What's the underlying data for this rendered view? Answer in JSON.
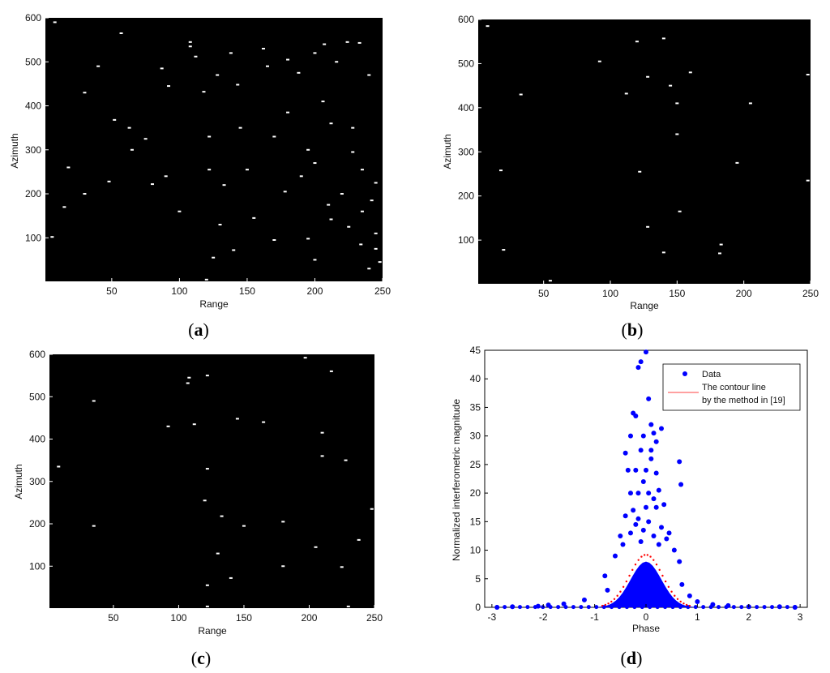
{
  "chart_data": [
    {
      "panel": "a",
      "type": "scatter",
      "title": "",
      "xlabel": "Range",
      "ylabel": "Azimuth",
      "xlim": [
        1,
        250
      ],
      "ylim": [
        1,
        600
      ],
      "xticks": [
        50,
        100,
        150,
        200,
        250
      ],
      "yticks": [
        100,
        200,
        300,
        400,
        500,
        600
      ],
      "background": "#000000",
      "point_color": "#ffffff",
      "points": [
        [
          108,
          545
        ],
        [
          108,
          535
        ],
        [
          112,
          512
        ],
        [
          40,
          490
        ],
        [
          87,
          485
        ],
        [
          138,
          520
        ],
        [
          118,
          432
        ],
        [
          128,
          470
        ],
        [
          52,
          368
        ],
        [
          63,
          350
        ],
        [
          75,
          325
        ],
        [
          65,
          300
        ],
        [
          122,
          330
        ],
        [
          170,
          330
        ],
        [
          212,
          360
        ],
        [
          228,
          350
        ],
        [
          228,
          295
        ],
        [
          122,
          255
        ],
        [
          133,
          220
        ],
        [
          80,
          222
        ],
        [
          178,
          205
        ],
        [
          18,
          260
        ],
        [
          200,
          270
        ],
        [
          212,
          142
        ],
        [
          130,
          130
        ],
        [
          140,
          72
        ],
        [
          125,
          55
        ],
        [
          155,
          145
        ],
        [
          195,
          98
        ],
        [
          235,
          160
        ],
        [
          242,
          185
        ],
        [
          245,
          110
        ],
        [
          245,
          75
        ],
        [
          248,
          45
        ],
        [
          6,
          102
        ],
        [
          92,
          445
        ],
        [
          143,
          448
        ],
        [
          165,
          490
        ],
        [
          180,
          505
        ],
        [
          200,
          520
        ],
        [
          207,
          540
        ],
        [
          224,
          545
        ],
        [
          233,
          543
        ],
        [
          240,
          470
        ],
        [
          206,
          410
        ],
        [
          180,
          385
        ],
        [
          57,
          565
        ],
        [
          8,
          590
        ],
        [
          216,
          500
        ],
        [
          145,
          350
        ],
        [
          90,
          240
        ],
        [
          30,
          200
        ],
        [
          100,
          160
        ],
        [
          150,
          255
        ],
        [
          190,
          240
        ],
        [
          220,
          200
        ],
        [
          235,
          255
        ],
        [
          120,
          5
        ],
        [
          200,
          50
        ],
        [
          240,
          30
        ],
        [
          170,
          95
        ],
        [
          225,
          125
        ],
        [
          48,
          228
        ],
        [
          15,
          170
        ],
        [
          30,
          430
        ],
        [
          162,
          530
        ],
        [
          188,
          475
        ],
        [
          195,
          300
        ],
        [
          234,
          85
        ],
        [
          210,
          175
        ],
        [
          245,
          225
        ]
      ]
    },
    {
      "panel": "b",
      "type": "scatter",
      "title": "",
      "xlabel": "Range",
      "ylabel": "Azimuth",
      "xlim": [
        1,
        250
      ],
      "ylim": [
        1,
        600
      ],
      "xticks": [
        50,
        100,
        150,
        200,
        250
      ],
      "yticks": [
        100,
        200,
        300,
        400,
        500,
        600
      ],
      "background": "#000000",
      "point_color": "#ffffff",
      "points": [
        [
          8,
          585
        ],
        [
          120,
          550
        ],
        [
          140,
          557
        ],
        [
          92,
          505
        ],
        [
          160,
          480
        ],
        [
          128,
          470
        ],
        [
          145,
          450
        ],
        [
          112,
          432
        ],
        [
          33,
          430
        ],
        [
          150,
          410
        ],
        [
          205,
          410
        ],
        [
          150,
          340
        ],
        [
          195,
          275
        ],
        [
          18,
          258
        ],
        [
          122,
          255
        ],
        [
          152,
          165
        ],
        [
          128,
          130
        ],
        [
          140,
          72
        ],
        [
          183,
          90
        ],
        [
          182,
          70
        ],
        [
          20,
          78
        ],
        [
          55,
          8
        ],
        [
          248,
          235
        ],
        [
          248,
          475
        ]
      ]
    },
    {
      "panel": "c",
      "type": "scatter",
      "title": "",
      "xlabel": "Range",
      "ylabel": "Azimuth",
      "xlim": [
        1,
        250
      ],
      "ylim": [
        1,
        600
      ],
      "xticks": [
        50,
        100,
        150,
        200,
        250
      ],
      "yticks": [
        100,
        200,
        300,
        400,
        500,
        600
      ],
      "background": "#000000",
      "point_color": "#ffffff",
      "points": [
        [
          108,
          545
        ],
        [
          107,
          532
        ],
        [
          122,
          550
        ],
        [
          197,
          592
        ],
        [
          217,
          560
        ],
        [
          35,
          490
        ],
        [
          112,
          435
        ],
        [
          92,
          430
        ],
        [
          145,
          448
        ],
        [
          165,
          440
        ],
        [
          210,
          415
        ],
        [
          8,
          335
        ],
        [
          122,
          330
        ],
        [
          210,
          360
        ],
        [
          228,
          350
        ],
        [
          120,
          255
        ],
        [
          133,
          218
        ],
        [
          180,
          205
        ],
        [
          150,
          195
        ],
        [
          35,
          195
        ],
        [
          238,
          162
        ],
        [
          205,
          145
        ],
        [
          130,
          130
        ],
        [
          140,
          72
        ],
        [
          122,
          55
        ],
        [
          180,
          100
        ],
        [
          225,
          98
        ],
        [
          248,
          235
        ],
        [
          122,
          5
        ],
        [
          230,
          5
        ]
      ]
    },
    {
      "panel": "d",
      "type": "scatter",
      "title": "",
      "xlabel": "Phase",
      "ylabel": "Normalized interferometric magnitude",
      "xlim": [
        -3.14,
        3.14
      ],
      "ylim": [
        0,
        45
      ],
      "xticks": [
        -3,
        -2,
        -1,
        0,
        1,
        2,
        3
      ],
      "yticks": [
        0,
        5,
        10,
        15,
        20,
        25,
        30,
        35,
        40,
        45
      ],
      "legend_position": "top-right",
      "series": [
        {
          "name": "Data",
          "color": "#0000ff",
          "marker": "dot",
          "density_model": "gaussian-core",
          "core_sigma": 0.3,
          "core_peak": 8,
          "outliers": [
            [
              0.0,
              44.7
            ],
            [
              -0.1,
              43
            ],
            [
              -0.15,
              42
            ],
            [
              0.05,
              36.5
            ],
            [
              0.1,
              32
            ],
            [
              -0.05,
              30
            ],
            [
              0.15,
              30.5
            ],
            [
              0.3,
              31.3
            ],
            [
              0.2,
              29
            ],
            [
              -0.3,
              30
            ],
            [
              -0.2,
              33.5
            ],
            [
              -0.25,
              34
            ],
            [
              -0.4,
              27
            ],
            [
              -0.1,
              27.5
            ],
            [
              0.1,
              27.5
            ],
            [
              0.65,
              25.5
            ],
            [
              0.68,
              21.5
            ],
            [
              -0.35,
              24
            ],
            [
              -0.2,
              24
            ],
            [
              0.0,
              24
            ],
            [
              0.2,
              23.5
            ],
            [
              0.1,
              26
            ],
            [
              0.25,
              20.5
            ],
            [
              -0.3,
              20
            ],
            [
              -0.15,
              20
            ],
            [
              0.05,
              20
            ],
            [
              -0.25,
              17
            ],
            [
              0.0,
              17.5
            ],
            [
              0.2,
              17.5
            ],
            [
              -0.4,
              16
            ],
            [
              -0.15,
              15.5
            ],
            [
              0.05,
              15
            ],
            [
              0.3,
              14
            ],
            [
              -0.3,
              13
            ],
            [
              -0.05,
              13.5
            ],
            [
              0.15,
              12.5
            ],
            [
              0.4,
              12
            ],
            [
              -0.45,
              11
            ],
            [
              0.25,
              11
            ],
            [
              -0.1,
              11.5
            ],
            [
              0.55,
              10
            ],
            [
              -0.6,
              9
            ],
            [
              -0.8,
              5.5
            ],
            [
              0.65,
              8
            ],
            [
              0.7,
              4
            ],
            [
              -0.75,
              3
            ],
            [
              0.85,
              2
            ],
            [
              -1.2,
              1.3
            ],
            [
              1.0,
              1
            ],
            [
              -1.6,
              0.6
            ],
            [
              1.6,
              0.3
            ],
            [
              -2.1,
              0.2
            ],
            [
              2.0,
              0.1
            ],
            [
              -2.6,
              0.1
            ],
            [
              2.6,
              0.1
            ],
            [
              -2.9,
              0.0
            ],
            [
              2.9,
              0.0
            ],
            [
              -1.9,
              0.4
            ],
            [
              1.3,
              0.5
            ],
            [
              0.35,
              18
            ],
            [
              -0.05,
              22
            ],
            [
              0.15,
              19
            ],
            [
              -0.2,
              14.5
            ],
            [
              0.45,
              13
            ],
            [
              -0.5,
              12.5
            ]
          ]
        },
        {
          "name": "The contour line by the method in [19]",
          "legend_lines": [
            "The contour line",
            "by the method in [19]"
          ],
          "color": "#ff0000",
          "marker": "line"
        }
      ]
    }
  ],
  "panel_labels": [
    {
      "open": "(",
      "letter": "a",
      "close": ")"
    },
    {
      "open": "(",
      "letter": "b",
      "close": ")"
    },
    {
      "open": "(",
      "letter": "c",
      "close": ")"
    },
    {
      "open": "(",
      "letter": "d",
      "close": ")"
    }
  ]
}
